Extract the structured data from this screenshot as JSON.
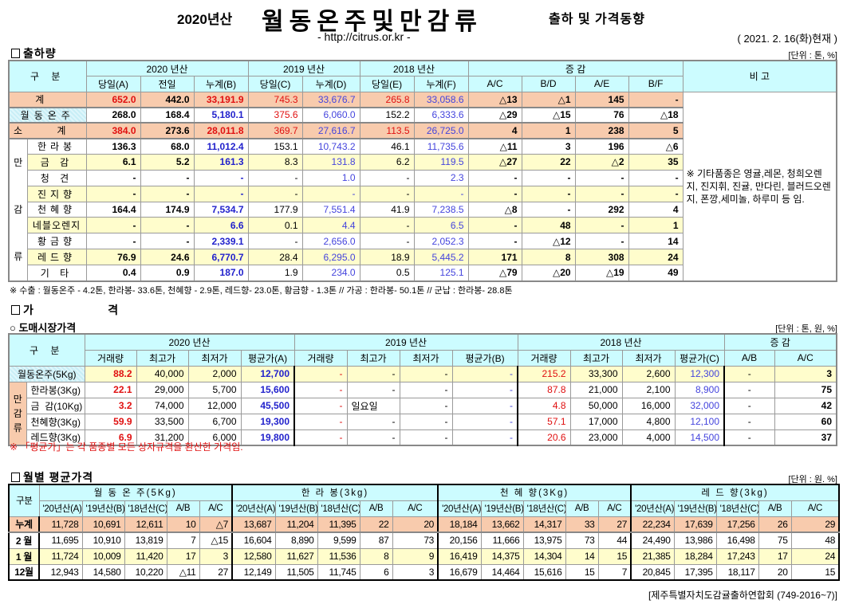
{
  "header": {
    "year_prefix": "2020년산",
    "title": "월동온주및만감류",
    "subtitle": "출하 및 가격동향",
    "url": "- http://citrus.or.kr -",
    "date": "( 2021. 2. 16(화)현재 )"
  },
  "shipment": {
    "section_title": "출하량",
    "unit": "[단위 : 톤, %]",
    "col_group_label": "구    분",
    "year_groups": [
      "2020 년산",
      "2019 년산",
      "2018 년산",
      "증    감",
      "비 고"
    ],
    "sub_headers": [
      "당일(A)",
      "전일",
      "누계(B)",
      "당일(C)",
      "누계(D)",
      "당일(E)",
      "누계(F)",
      "A/C",
      "B/D",
      "A/E",
      "B/F"
    ],
    "group_label_chars": [
      "만",
      "감",
      "류"
    ],
    "remark": "※ 기타품종은 영귤,레몬, 청희오렌지, 진지휘, 진귤, 만다린, 블러드오렌지, 폰깡,세미놀, 하루미 등 임.",
    "rows": [
      {
        "label": "계",
        "values": [
          "652.0",
          "442.0",
          "33,191.9",
          "745.3",
          "33,676.7",
          "265.8",
          "33,058.6",
          "△13",
          "△1",
          "145",
          "-"
        ]
      },
      {
        "label": "월동온주",
        "values": [
          "268.0",
          "168.4",
          "5,180.1",
          "375.6",
          "6,060.0",
          "152.2",
          "6,333.6",
          "△29",
          "△15",
          "76",
          "△18"
        ]
      },
      {
        "label": "소 계",
        "values": [
          "384.0",
          "273.6",
          "28,011.8",
          "369.7",
          "27,616.7",
          "113.5",
          "26,725.0",
          "4",
          "1",
          "238",
          "5"
        ]
      },
      {
        "label": "한라봉",
        "values": [
          "136.3",
          "68.0",
          "11,012.4",
          "153.1",
          "10,743.2",
          "46.1",
          "11,735.6",
          "△11",
          "3",
          "196",
          "△6"
        ]
      },
      {
        "label": "금 감",
        "values": [
          "6.1",
          "5.2",
          "161.3",
          "8.3",
          "131.8",
          "6.2",
          "119.5",
          "△27",
          "22",
          "△2",
          "35"
        ]
      },
      {
        "label": "청 견",
        "values": [
          "-",
          "-",
          "-",
          "-",
          "1.0",
          "-",
          "2.3",
          "-",
          "-",
          "-",
          "-"
        ]
      },
      {
        "label": "진지향",
        "values": [
          "-",
          "-",
          "-",
          "-",
          "-",
          "-",
          "-",
          "-",
          "-",
          "-",
          "-"
        ]
      },
      {
        "label": "천혜향",
        "values": [
          "164.4",
          "174.9",
          "7,534.7",
          "177.9",
          "7,551.4",
          "41.9",
          "7,238.5",
          "△8",
          "-",
          "292",
          "4"
        ]
      },
      {
        "label": "네블오렌지",
        "values": [
          "-",
          "-",
          "6.6",
          "0.1",
          "4.4",
          "-",
          "6.5",
          "-",
          "48",
          "-",
          "1"
        ]
      },
      {
        "label": "황금향",
        "values": [
          "-",
          "-",
          "2,339.1",
          "-",
          "2,656.0",
          "-",
          "2,052.3",
          "-",
          "△12",
          "-",
          "14"
        ]
      },
      {
        "label": "레드향",
        "values": [
          "76.9",
          "24.6",
          "6,770.7",
          "28.4",
          "6,295.0",
          "18.9",
          "5,445.2",
          "171",
          "8",
          "308",
          "24"
        ]
      },
      {
        "label": "기 타",
        "values": [
          "0.4",
          "0.9",
          "187.0",
          "1.9",
          "234.0",
          "0.5",
          "125.1",
          "△79",
          "△20",
          "△19",
          "49"
        ]
      }
    ],
    "footnote": "※ 수출 : 월동온주 - 4.2톤, 한라봉- 33.6톤, 천혜향 - 2.9톤, 레드향- 23.0톤, 황금향 - 1.3톤  // 가공 : 한라봉- 50.1톤 // 군납 : 한라봉- 28.8톤"
  },
  "price": {
    "section_title": "가      격",
    "sub_title": "○ 도매시장가격",
    "unit": "[단위 : 톤, 원, %]",
    "col_group_label": "구    분",
    "year_groups": [
      "2020 년산",
      "2019 년산",
      "2018 년산",
      "증    감"
    ],
    "sub_headers": [
      "거래량",
      "최고가",
      "최저가",
      "평균가(A)",
      "거래량",
      "최고가",
      "최저가",
      "평균가(B)",
      "거래량",
      "최고가",
      "최저가",
      "평균가(C)",
      "A/B",
      "A/C"
    ],
    "group_label_chars": [
      "만",
      "감",
      "류"
    ],
    "rows": [
      {
        "label": "월동온주(5Kg)",
        "values": [
          "88.2",
          "40,000",
          "2,000",
          "12,700",
          "-",
          "-",
          "-",
          "-",
          "215.2",
          "33,300",
          "2,600",
          "12,300",
          "-",
          "3"
        ]
      },
      {
        "label": "한라봉(3Kg)",
        "values": [
          "22.1",
          "29,000",
          "5,700",
          "15,600",
          "-",
          "-",
          "-",
          "-",
          "87.8",
          "21,000",
          "2,100",
          "8,900",
          "-",
          "75"
        ]
      },
      {
        "label": "금  감(10Kg)",
        "values": [
          "3.2",
          "74,000",
          "12,000",
          "45,500",
          "-",
          "일요일",
          "-",
          "-",
          "4.8",
          "50,000",
          "16,000",
          "32,000",
          "-",
          "42"
        ]
      },
      {
        "label": "천혜향(3Kg)",
        "values": [
          "59.9",
          "33,500",
          "6,700",
          "19,300",
          "-",
          "-",
          "-",
          "-",
          "57.1",
          "17,000",
          "4,800",
          "12,100",
          "-",
          "60"
        ]
      },
      {
        "label": "레드향(3Kg)",
        "values": [
          "6.9",
          "31,200",
          "6,000",
          "19,800",
          "-",
          "-",
          "-",
          "-",
          "20.6",
          "23,000",
          "4,000",
          "14,500",
          "-",
          "37"
        ]
      }
    ],
    "footnote": "※  「평균가」는 각 품종별 모든 상자규격을 환산한 가격임."
  },
  "monthly": {
    "section_title": "월별 평균가격",
    "unit": "[단위 : 원. %]",
    "col_group_label": "구분",
    "groups": [
      "월 동 온 주(5Kg)",
      "한  라  봉(3kg)",
      "천 혜 향(3Kg)",
      "레 드 향(3kg)"
    ],
    "sub_headers": [
      "'20년산(A)",
      "'19년산(B)",
      "'18년산(C)",
      "A/B",
      "A/C"
    ],
    "rows": [
      {
        "label": "누계",
        "values": [
          "11,728",
          "10,691",
          "12,611",
          "10",
          "△7",
          "13,687",
          "11,204",
          "11,395",
          "22",
          "20",
          "18,184",
          "13,662",
          "14,317",
          "33",
          "27",
          "22,234",
          "17,639",
          "17,256",
          "26",
          "29"
        ]
      },
      {
        "label": "2 월",
        "values": [
          "11,695",
          "10,910",
          "13,819",
          "7",
          "△15",
          "16,604",
          "8,890",
          "9,599",
          "87",
          "73",
          "20,156",
          "11,666",
          "13,975",
          "73",
          "44",
          "24,490",
          "13,986",
          "16,498",
          "75",
          "48"
        ]
      },
      {
        "label": "1 월",
        "values": [
          "11,724",
          "10,009",
          "11,420",
          "17",
          "3",
          "12,580",
          "11,627",
          "11,536",
          "8",
          "9",
          "16,419",
          "14,375",
          "14,304",
          "14",
          "15",
          "21,385",
          "18,284",
          "17,243",
          "17",
          "24"
        ]
      },
      {
        "label": "12월",
        "values": [
          "12,943",
          "14,580",
          "10,220",
          "△11",
          "27",
          "12,149",
          "11,505",
          "11,745",
          "6",
          "3",
          "16,679",
          "14,464",
          "15,616",
          "15",
          "7",
          "20,845",
          "17,395",
          "18,117",
          "20",
          "15"
        ]
      }
    ]
  },
  "footer": "[제주특별자치도감귤출하연합회 (749-2016~7)]",
  "colors": {
    "header_bg": "#ccfcff",
    "total_row_bg": "#f8cbad",
    "alt_row_bg": "#fffdcc",
    "red_text": "#e01010",
    "blue_text": "#2222cc"
  }
}
